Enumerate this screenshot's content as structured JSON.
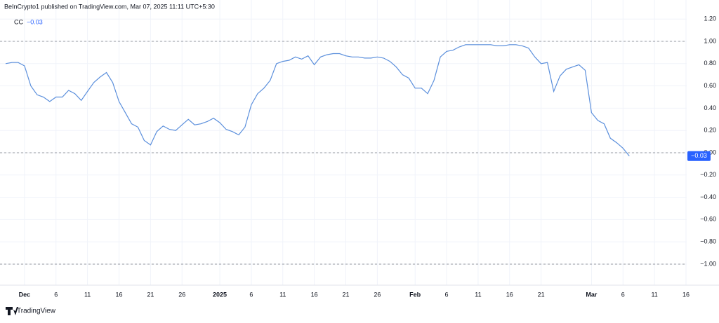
{
  "header": "BeInCrypto1 published on TradingView.com, Mar 07, 2025 11:11 UTC+5:30",
  "footer": "TradingView",
  "chart_data": {
    "type": "line",
    "legend_name": "CC",
    "last_value": {
      "value": -0.03,
      "label": "−0.03"
    },
    "categories": [
      null,
      null,
      null,
      "Dec",
      null,
      null,
      null,
      null,
      "6",
      null,
      null,
      null,
      null,
      "11",
      null,
      null,
      null,
      null,
      "16",
      null,
      null,
      null,
      null,
      "21",
      null,
      null,
      null,
      null,
      "26",
      null,
      null,
      null,
      null,
      null,
      "2025",
      null,
      null,
      null,
      null,
      "6",
      null,
      null,
      null,
      null,
      "11",
      null,
      null,
      null,
      null,
      "16",
      null,
      null,
      null,
      null,
      "21",
      null,
      null,
      null,
      null,
      "26",
      null,
      null,
      null,
      null,
      null,
      "Feb",
      null,
      null,
      null,
      null,
      "6",
      null,
      null,
      null,
      null,
      "11",
      null,
      null,
      null,
      null,
      "16",
      null,
      null,
      null,
      null,
      "21",
      null,
      null,
      null,
      null,
      null,
      null,
      null,
      "Mar",
      null,
      null,
      null,
      null,
      "6",
      null,
      null,
      null,
      null,
      "11",
      null,
      null,
      null,
      null,
      "16"
    ],
    "series": [
      {
        "name": "CC",
        "color": "#5b8fdc",
        "values": [
          0.8,
          0.81,
          0.81,
          0.78,
          0.6,
          0.52,
          0.5,
          0.46,
          0.5,
          0.5,
          0.56,
          0.53,
          0.47,
          0.55,
          0.63,
          0.68,
          0.72,
          0.63,
          0.46,
          0.36,
          0.26,
          0.23,
          0.11,
          0.07,
          0.19,
          0.24,
          0.21,
          0.2,
          0.25,
          0.3,
          0.25,
          0.26,
          0.28,
          0.31,
          0.27,
          0.21,
          0.19,
          0.16,
          0.23,
          0.43,
          0.53,
          0.58,
          0.65,
          0.8,
          0.82,
          0.83,
          0.86,
          0.84,
          0.87,
          0.79,
          0.86,
          0.88,
          0.89,
          0.89,
          0.87,
          0.86,
          0.86,
          0.85,
          0.85,
          0.86,
          0.85,
          0.82,
          0.77,
          0.7,
          0.67,
          0.58,
          0.58,
          0.53,
          0.65,
          0.86,
          0.91,
          0.92,
          0.95,
          0.97,
          0.97,
          0.97,
          0.97,
          0.97,
          0.96,
          0.96,
          0.97,
          0.97,
          0.96,
          0.94,
          0.86,
          0.8,
          0.81,
          0.55,
          0.69,
          0.75,
          0.77,
          0.79,
          0.74,
          0.36,
          0.29,
          0.26,
          0.13,
          0.09,
          0.04,
          -0.03,
          null,
          null,
          null,
          null,
          null,
          null,
          null,
          null,
          null
        ]
      }
    ],
    "ylim": [
      -1.145,
      1.258
    ],
    "yticks": [
      {
        "value": 1.2,
        "label": "1.20"
      },
      {
        "value": 1,
        "label": "1.00"
      },
      {
        "value": 0.8,
        "label": "0.80"
      },
      {
        "value": 0.6,
        "label": "0.60"
      },
      {
        "value": 0.4,
        "label": "0.40"
      },
      {
        "value": 0.2,
        "label": "0.20"
      },
      {
        "value": 0,
        "label": "0.00"
      },
      {
        "value": -0.2,
        "label": "−0.20"
      },
      {
        "value": -0.4,
        "label": "−0.40"
      },
      {
        "value": -0.6,
        "label": "−0.60"
      },
      {
        "value": -0.8,
        "label": "−0.80"
      },
      {
        "value": -1,
        "label": "−1.00"
      }
    ],
    "levels": [
      1,
      0,
      -1
    ],
    "grid": true,
    "badge_color": "#2962ff"
  }
}
